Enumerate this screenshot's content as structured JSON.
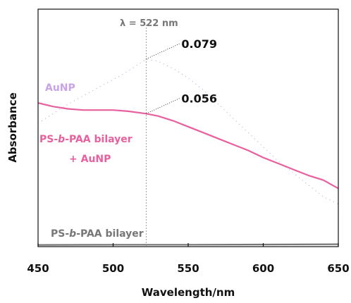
{
  "chart_data": {
    "type": "line",
    "title": "",
    "xlabel": "Wavelength/nm",
    "ylabel": "Absorbance",
    "xlim": [
      450,
      650
    ],
    "ylim": [
      0.0,
      0.1
    ],
    "xticks": [
      "450",
      "500",
      "550",
      "600",
      "650"
    ],
    "yticks": [],
    "grid": false,
    "series": [
      {
        "name": "AuNP",
        "color": "#c9a2e8",
        "style": "dotted",
        "x": [
          450,
          470,
          490,
          505,
          515,
          522,
          530,
          540,
          550,
          560,
          570,
          580,
          590,
          600,
          610,
          620,
          630,
          640,
          650
        ],
        "y": [
          0.052,
          0.06,
          0.067,
          0.072,
          0.076,
          0.079,
          0.078,
          0.075,
          0.071,
          0.066,
          0.06,
          0.054,
          0.048,
          0.042,
          0.036,
          0.031,
          0.026,
          0.021,
          0.018
        ]
      },
      {
        "name": "PS-b-PAA bilayer + AuNP",
        "color": "#e8609e",
        "style": "solid",
        "x": [
          450,
          460,
          470,
          480,
          490,
          500,
          510,
          522,
          530,
          540,
          550,
          560,
          570,
          580,
          590,
          600,
          610,
          620,
          630,
          640,
          650
        ],
        "y": [
          0.0605,
          0.059,
          0.058,
          0.0575,
          0.0575,
          0.0575,
          0.057,
          0.056,
          0.055,
          0.053,
          0.0505,
          0.048,
          0.0455,
          0.043,
          0.0405,
          0.0375,
          0.035,
          0.0325,
          0.03,
          0.028,
          0.0245
        ]
      },
      {
        "name": "PS-b-PAA bilayer",
        "color": "#777777",
        "style": "solid",
        "x": [
          450,
          500,
          550,
          600,
          650
        ],
        "y": [
          0.0007,
          0.0008,
          0.0008,
          0.0009,
          0.001
        ]
      }
    ],
    "annotations": {
      "peak_line_x": 522,
      "lambda_label": "λ = 522 nm",
      "value_labels": [
        {
          "x": 522,
          "y": 0.079,
          "text": "0.079"
        },
        {
          "x": 522,
          "y": 0.056,
          "text": "0.056"
        }
      ]
    }
  },
  "labels": {
    "aunp": "AuNP",
    "bilayer_aunp_prefix": "PS-",
    "bilayer_aunp_b": "b",
    "bilayer_aunp_suffix": "-PAA bilayer",
    "bilayer_aunp_line2": "+ AuNP",
    "bilayer_prefix": "PS-",
    "bilayer_b": "b",
    "bilayer_suffix": "-PAA bilayer"
  }
}
